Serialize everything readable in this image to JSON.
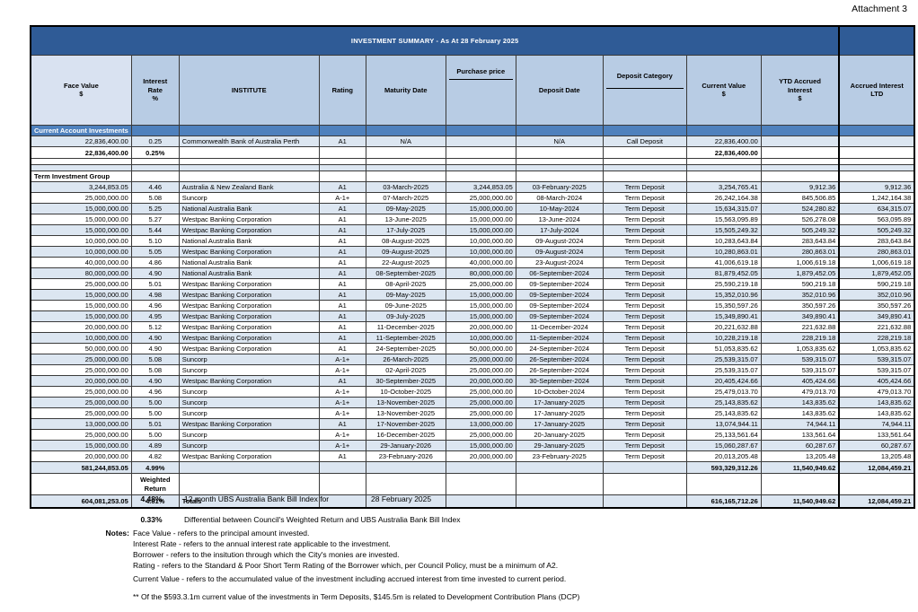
{
  "page": {
    "attachment_label": "Attachment 3"
  },
  "table": {
    "title": "INVESTMENT SUMMARY - As At 28 February 2025",
    "columns": [
      {
        "label": "Face Value\n$"
      },
      {
        "label": "Interest\nRate\n%"
      },
      {
        "label": "INSTITUTE"
      },
      {
        "label": "Rating"
      },
      {
        "label": "Maturity Date"
      },
      {
        "label": "Purchase price"
      },
      {
        "label": "Deposit Date"
      },
      {
        "label": "Deposit Category"
      },
      {
        "label": "Current Value\n$"
      },
      {
        "label": "YTD Accrued\nInterest\n$"
      },
      {
        "label": "Accrued Interest\nLTD"
      }
    ],
    "body_rows": [
      {
        "type": "section",
        "shade": "band",
        "label": "Current Account Investments"
      },
      {
        "type": "data",
        "shade": "blue",
        "cells": [
          "22,836,400.00",
          "0.25",
          "Commonwealth Bank of Australia Perth",
          "A1",
          "N/A",
          "",
          "N/A",
          "Call Deposit",
          "22,836,400.00",
          "",
          ""
        ]
      },
      {
        "type": "subtotal",
        "shade": "white",
        "cells": [
          "22,836,400.00",
          "0.25%",
          "",
          "",
          "",
          "",
          "",
          "",
          "22,836,400.00",
          "",
          ""
        ]
      },
      {
        "type": "blank",
        "shade": "white"
      },
      {
        "type": "blank",
        "shade": "blue"
      },
      {
        "type": "group",
        "shade": "white",
        "label": "Term Investment Group"
      },
      {
        "type": "data",
        "shade": "blue",
        "cells": [
          "3,244,853.05",
          "4.46",
          "Australia & New Zealand Bank",
          "A1",
          "03-March-2025",
          "3,244,853.05",
          "03-February-2025",
          "Term Deposit",
          "3,254,765.41",
          "9,912.36",
          "9,912.36"
        ]
      },
      {
        "type": "data",
        "shade": "white",
        "cells": [
          "25,000,000.00",
          "5.08",
          "Suncorp",
          "A-1+",
          "07-March-2025",
          "25,000,000.00",
          "08-March-2024",
          "Term Deposit",
          "26,242,164.38",
          "845,506.85",
          "1,242,164.38"
        ]
      },
      {
        "type": "data",
        "shade": "blue",
        "cells": [
          "15,000,000.00",
          "5.25",
          "National Australia Bank",
          "A1",
          "09-May-2025",
          "15,000,000.00",
          "10-May-2024",
          "Term Deposit",
          "15,634,315.07",
          "524,280.82",
          "634,315.07"
        ]
      },
      {
        "type": "data",
        "shade": "white",
        "cells": [
          "15,000,000.00",
          "5.27",
          "Westpac Banking Corporation",
          "A1",
          "13-June-2025",
          "15,000,000.00",
          "13-June-2024",
          "Term Deposit",
          "15,563,095.89",
          "526,278.08",
          "563,095.89"
        ]
      },
      {
        "type": "data",
        "shade": "blue",
        "cells": [
          "15,000,000.00",
          "5.44",
          "Westpac Banking Corporation",
          "A1",
          "17-July-2025",
          "15,000,000.00",
          "17-July-2024",
          "Term Deposit",
          "15,505,249.32",
          "505,249.32",
          "505,249.32"
        ]
      },
      {
        "type": "data",
        "shade": "white",
        "cells": [
          "10,000,000.00",
          "5.10",
          "National Australia Bank",
          "A1",
          "08-August-2025",
          "10,000,000.00",
          "09-August-2024",
          "Term Deposit",
          "10,283,643.84",
          "283,643.84",
          "283,643.84"
        ]
      },
      {
        "type": "data",
        "shade": "blue",
        "cells": [
          "10,000,000.00",
          "5.05",
          "Westpac Banking Corporation",
          "A1",
          "09-August-2025",
          "10,000,000.00",
          "09-August-2024",
          "Term Deposit",
          "10,280,863.01",
          "280,863.01",
          "280,863.01"
        ]
      },
      {
        "type": "data",
        "shade": "white",
        "cells": [
          "40,000,000.00",
          "4.86",
          "National Australia Bank",
          "A1",
          "22-August-2025",
          "40,000,000.00",
          "23-August-2024",
          "Term Deposit",
          "41,006,619.18",
          "1,006,619.18",
          "1,006,619.18"
        ]
      },
      {
        "type": "data",
        "shade": "blue",
        "cells": [
          "80,000,000.00",
          "4.90",
          "National Australia Bank",
          "A1",
          "08-September-2025",
          "80,000,000.00",
          "06-September-2024",
          "Term Deposit",
          "81,879,452.05",
          "1,879,452.05",
          "1,879,452.05"
        ]
      },
      {
        "type": "data",
        "shade": "white",
        "cells": [
          "25,000,000.00",
          "5.01",
          "Westpac Banking Corporation",
          "A1",
          "08-April-2025",
          "25,000,000.00",
          "09-September-2024",
          "Term Deposit",
          "25,590,219.18",
          "590,219.18",
          "590,219.18"
        ]
      },
      {
        "type": "data",
        "shade": "blue",
        "cells": [
          "15,000,000.00",
          "4.98",
          "Westpac Banking Corporation",
          "A1",
          "09-May-2025",
          "15,000,000.00",
          "09-September-2024",
          "Term Deposit",
          "15,352,010.96",
          "352,010.96",
          "352,010.96"
        ]
      },
      {
        "type": "data",
        "shade": "white",
        "cells": [
          "15,000,000.00",
          "4.96",
          "Westpac Banking Corporation",
          "A1",
          "09-June-2025",
          "15,000,000.00",
          "09-September-2024",
          "Term Deposit",
          "15,350,597.26",
          "350,597.26",
          "350,597.26"
        ]
      },
      {
        "type": "data",
        "shade": "blue",
        "cells": [
          "15,000,000.00",
          "4.95",
          "Westpac Banking Corporation",
          "A1",
          "09-July-2025",
          "15,000,000.00",
          "09-September-2024",
          "Term Deposit",
          "15,349,890.41",
          "349,890.41",
          "349,890.41"
        ]
      },
      {
        "type": "data",
        "shade": "white",
        "cells": [
          "20,000,000.00",
          "5.12",
          "Westpac Banking Corporation",
          "A1",
          "11-December-2025",
          "20,000,000.00",
          "11-December-2024",
          "Term Deposit",
          "20,221,632.88",
          "221,632.88",
          "221,632.88"
        ]
      },
      {
        "type": "data",
        "shade": "blue",
        "cells": [
          "10,000,000.00",
          "4.90",
          "Westpac Banking Corporation",
          "A1",
          "11-September-2025",
          "10,000,000.00",
          "11-September-2024",
          "Term Deposit",
          "10,228,219.18",
          "228,219.18",
          "228,219.18"
        ]
      },
      {
        "type": "data",
        "shade": "white",
        "cells": [
          "50,000,000.00",
          "4.90",
          "Westpac Banking Corporation",
          "A1",
          "24-September-2025",
          "50,000,000.00",
          "24-September-2024",
          "Term Deposit",
          "51,053,835.62",
          "1,053,835.62",
          "1,053,835.62"
        ]
      },
      {
        "type": "data",
        "shade": "blue",
        "cells": [
          "25,000,000.00",
          "5.08",
          "Suncorp",
          "A-1+",
          "26-March-2025",
          "25,000,000.00",
          "26-September-2024",
          "Term Deposit",
          "25,539,315.07",
          "539,315.07",
          "539,315.07"
        ]
      },
      {
        "type": "data",
        "shade": "white",
        "cells": [
          "25,000,000.00",
          "5.08",
          "Suncorp",
          "A-1+",
          "02-April-2025",
          "25,000,000.00",
          "26-September-2024",
          "Term Deposit",
          "25,539,315.07",
          "539,315.07",
          "539,315.07"
        ]
      },
      {
        "type": "data",
        "shade": "blue",
        "cells": [
          "20,000,000.00",
          "4.90",
          "Westpac Banking Corporation",
          "A1",
          "30-September-2025",
          "20,000,000.00",
          "30-September-2024",
          "Term Deposit",
          "20,405,424.66",
          "405,424.66",
          "405,424.66"
        ]
      },
      {
        "type": "data",
        "shade": "white",
        "cells": [
          "25,000,000.00",
          "4.96",
          "Suncorp",
          "A-1+",
          "10-October-2025",
          "25,000,000.00",
          "10-October-2024",
          "Term Deposit",
          "25,479,013.70",
          "479,013.70",
          "479,013.70"
        ]
      },
      {
        "type": "data",
        "shade": "blue",
        "cells": [
          "25,000,000.00",
          "5.00",
          "Suncorp",
          "A-1+",
          "13-November-2025",
          "25,000,000.00",
          "17-January-2025",
          "Term Deposit",
          "25,143,835.62",
          "143,835.62",
          "143,835.62"
        ]
      },
      {
        "type": "data",
        "shade": "white",
        "cells": [
          "25,000,000.00",
          "5.00",
          "Suncorp",
          "A-1+",
          "13-November-2025",
          "25,000,000.00",
          "17-January-2025",
          "Term Deposit",
          "25,143,835.62",
          "143,835.62",
          "143,835.62"
        ]
      },
      {
        "type": "data",
        "shade": "blue",
        "cells": [
          "13,000,000.00",
          "5.01",
          "Westpac Banking Corporation",
          "A1",
          "17-November-2025",
          "13,000,000.00",
          "17-January-2025",
          "Term Deposit",
          "13,074,944.11",
          "74,944.11",
          "74,944.11"
        ]
      },
      {
        "type": "data",
        "shade": "white",
        "cells": [
          "25,000,000.00",
          "5.00",
          "Suncorp",
          "A-1+",
          "16-December-2025",
          "25,000,000.00",
          "20-January-2025",
          "Term Deposit",
          "25,133,561.64",
          "133,561.64",
          "133,561.64"
        ]
      },
      {
        "type": "data",
        "shade": "blue",
        "cells": [
          "15,000,000.00",
          "4.89",
          "Suncorp",
          "A-1+",
          "29-January-2026",
          "15,000,000.00",
          "29-January-2025",
          "Term Deposit",
          "15,060,287.67",
          "60,287.67",
          "60,287.67"
        ]
      },
      {
        "type": "data",
        "shade": "white",
        "cells": [
          "20,000,000.00",
          "4.82",
          "Westpac Banking Corporation",
          "A1",
          "23-February-2026",
          "20,000,000.00",
          "23-February-2025",
          "Term Deposit",
          "20,013,205.48",
          "13,205.48",
          "13,205.48"
        ]
      },
      {
        "type": "subtotal",
        "shade": "blue",
        "cells": [
          "581,244,853.05",
          "4.99%",
          "",
          "",
          "",
          "",
          "",
          "",
          "593,329,312.26",
          "11,540,949.62",
          "12,084,459.21"
        ]
      },
      {
        "type": "weighted",
        "shade": "white",
        "label": "Weighted\nReturn"
      },
      {
        "type": "totals",
        "shade": "blue",
        "cells": [
          "604,081,253.05",
          "4.81%",
          "Totals",
          "",
          "",
          "",
          "",
          "",
          "616,165,712.26",
          "11,540,949.62",
          "12,084,459.21"
        ]
      }
    ]
  },
  "below_table": {
    "benchmark": {
      "rate": "4.48%",
      "label": "12 month UBS Australia Bank Bill Index for",
      "date": "28 February 2025"
    },
    "differential": {
      "rate": "0.33%",
      "label": "Differential between Council's Weighted Return and  UBS Australia Bank Bill Index"
    },
    "notes": {
      "heading": "Notes:",
      "lines": [
        "Face Value - refers to the principal amount invested.",
        "Interest Rate - refers to the annual interest rate applicable to the investment.",
        "Borrower - refers to the insitution through which the City's monies are invested.",
        "Rating - refers to the Standard & Poor Short Term Rating of the Borrower which, per Council Policy, must be a minimum of A2.",
        "Current Value - refers to the accumulated value of the investment including accrued interest from time invested to current period."
      ]
    },
    "footnote": "** Of the $593.3.1m current value of the investments in Term Deposits, $145.5m is related to Development Contribution Plans (DCP)"
  }
}
